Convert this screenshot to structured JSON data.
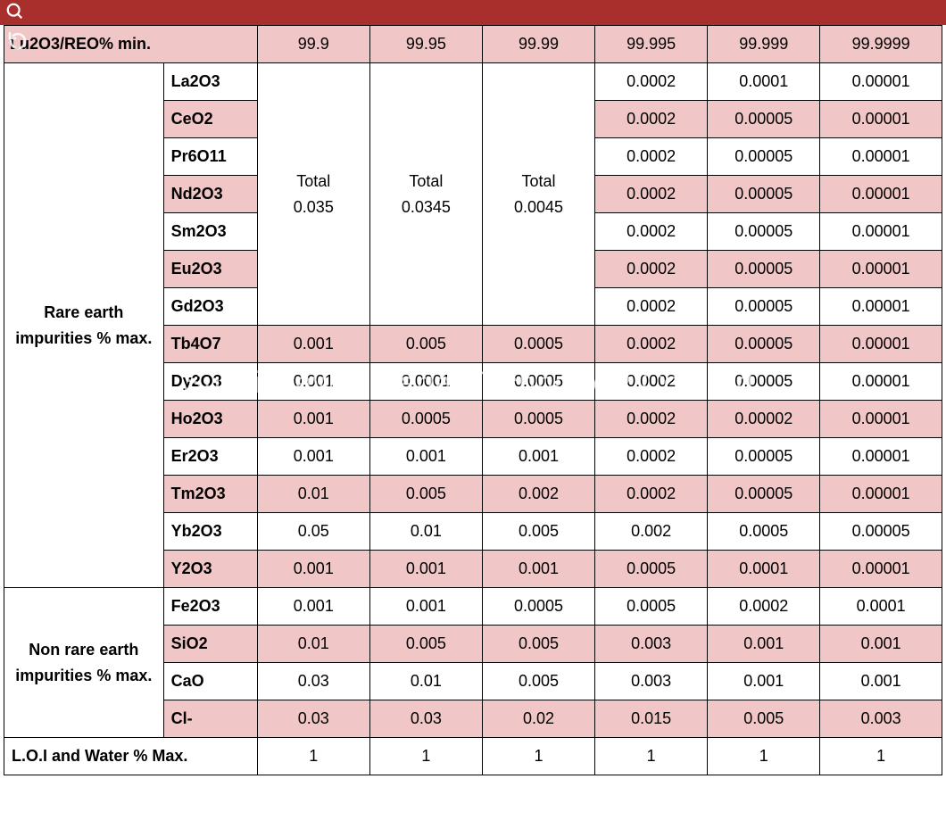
{
  "colors": {
    "topbar_bg": "#a92f2d",
    "pink_cell": "#f0c6c6",
    "border": "#000000",
    "text": "#000000",
    "icon": "#ffffff"
  },
  "layout": {
    "col_widths_pct": [
      17,
      10,
      12,
      12,
      12,
      12,
      12,
      13
    ]
  },
  "header": {
    "main": "Lu2O3/REO% min.",
    "cols": [
      "99.9",
      "99.95",
      "99.99",
      "99.995",
      "99.999",
      "99.9999"
    ]
  },
  "watermark": "Suoyi New Material Technology Co., Ltd.",
  "sections": [
    {
      "title": "Rare earth impurities % max.",
      "merged_cols": {
        "span_rows": 7,
        "vals": [
          "Total 0.035",
          "Total 0.0345",
          "Total 0.0045"
        ]
      },
      "rows": [
        {
          "name": "La2O3",
          "pink": false,
          "vals": [
            null,
            null,
            null,
            "0.0002",
            "0.0001",
            "0.00001"
          ]
        },
        {
          "name": "CeO2",
          "pink": true,
          "vals": [
            null,
            null,
            null,
            "0.0002",
            "0.00005",
            "0.00001"
          ]
        },
        {
          "name": "Pr6O11",
          "pink": false,
          "vals": [
            null,
            null,
            null,
            "0.0002",
            "0.00005",
            "0.00001"
          ]
        },
        {
          "name": "Nd2O3",
          "pink": true,
          "vals": [
            null,
            null,
            null,
            "0.0002",
            "0.00005",
            "0.00001"
          ]
        },
        {
          "name": "Sm2O3",
          "pink": false,
          "vals": [
            null,
            null,
            null,
            "0.0002",
            "0.00005",
            "0.00001"
          ]
        },
        {
          "name": "Eu2O3",
          "pink": true,
          "vals": [
            null,
            null,
            null,
            "0.0002",
            "0.00005",
            "0.00001"
          ]
        },
        {
          "name": "Gd2O3",
          "pink": false,
          "vals": [
            null,
            null,
            null,
            "0.0002",
            "0.00005",
            "0.00001"
          ]
        },
        {
          "name": "Tb4O7",
          "pink": true,
          "vals": [
            "0.001",
            "0.005",
            "0.0005",
            "0.0002",
            "0.00005",
            "0.00001"
          ]
        },
        {
          "name": "Dy2O3",
          "pink": false,
          "vals": [
            "0.001",
            "0.0001",
            "0.0005",
            "0.0002",
            "0.00005",
            "0.00001"
          ]
        },
        {
          "name": "Ho2O3",
          "pink": true,
          "vals": [
            "0.001",
            "0.0005",
            "0.0005",
            "0.0002",
            "0.00002",
            "0.00001"
          ]
        },
        {
          "name": "Er2O3",
          "pink": false,
          "vals": [
            "0.001",
            "0.001",
            "0.001",
            "0.0002",
            "0.00005",
            "0.00001"
          ]
        },
        {
          "name": "Tm2O3",
          "pink": true,
          "vals": [
            "0.01",
            "0.005",
            "0.002",
            "0.0002",
            "0.00005",
            "0.00001"
          ]
        },
        {
          "name": "Yb2O3",
          "pink": false,
          "vals": [
            "0.05",
            "0.01",
            "0.005",
            "0.002",
            "0.0005",
            "0.00005"
          ]
        },
        {
          "name": "Y2O3",
          "pink": true,
          "vals": [
            "0.001",
            "0.001",
            "0.001",
            "0.0005",
            "0.0001",
            "0.00001"
          ]
        }
      ]
    },
    {
      "title": "Non rare earth impurities % max.",
      "rows": [
        {
          "name": "Fe2O3",
          "pink": false,
          "vals": [
            "0.001",
            "0.001",
            "0.0005",
            "0.0005",
            "0.0002",
            "0.0001"
          ]
        },
        {
          "name": "SiO2",
          "pink": true,
          "vals": [
            "0.01",
            "0.005",
            "0.005",
            "0.003",
            "0.001",
            "0.001"
          ]
        },
        {
          "name": "CaO",
          "pink": false,
          "vals": [
            "0.03",
            "0.01",
            "0.005",
            "0.003",
            "0.001",
            "0.001"
          ]
        },
        {
          "name": "Cl-",
          "pink": true,
          "vals": [
            "0.03",
            "0.03",
            "0.02",
            "0.015",
            "0.005",
            "0.003"
          ]
        }
      ]
    }
  ],
  "footer": {
    "label": "L.O.I and Water % Max.",
    "vals": [
      "1",
      "1",
      "1",
      "1",
      "1",
      "1"
    ]
  }
}
